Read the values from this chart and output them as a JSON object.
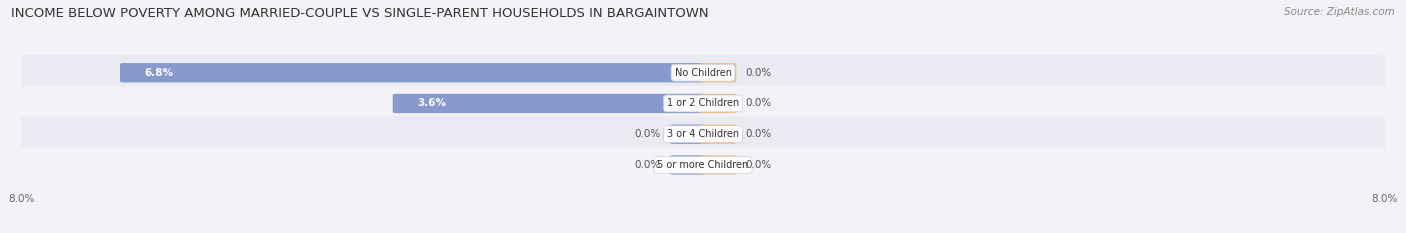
{
  "title": "INCOME BELOW POVERTY AMONG MARRIED-COUPLE VS SINGLE-PARENT HOUSEHOLDS IN BARGAINTOWN",
  "source": "Source: ZipAtlas.com",
  "categories": [
    "No Children",
    "1 or 2 Children",
    "3 or 4 Children",
    "5 or more Children"
  ],
  "married_values": [
    6.8,
    3.6,
    0.0,
    0.0
  ],
  "single_values": [
    0.0,
    0.0,
    0.0,
    0.0
  ],
  "married_color": "#8899cc",
  "single_color": "#f0c080",
  "stub_size": 0.35,
  "bar_height": 0.55,
  "xlim": 8.0,
  "background_color": "#f2f2f7",
  "row_color_odd": "#eaeaf2",
  "row_color_even": "#f2f2f7",
  "title_fontsize": 9.5,
  "source_fontsize": 7.5,
  "label_fontsize": 7.5,
  "category_fontsize": 7.0,
  "tick_fontsize": 7.5,
  "value_label_dark": "#555555",
  "value_label_white": "#ffffff"
}
